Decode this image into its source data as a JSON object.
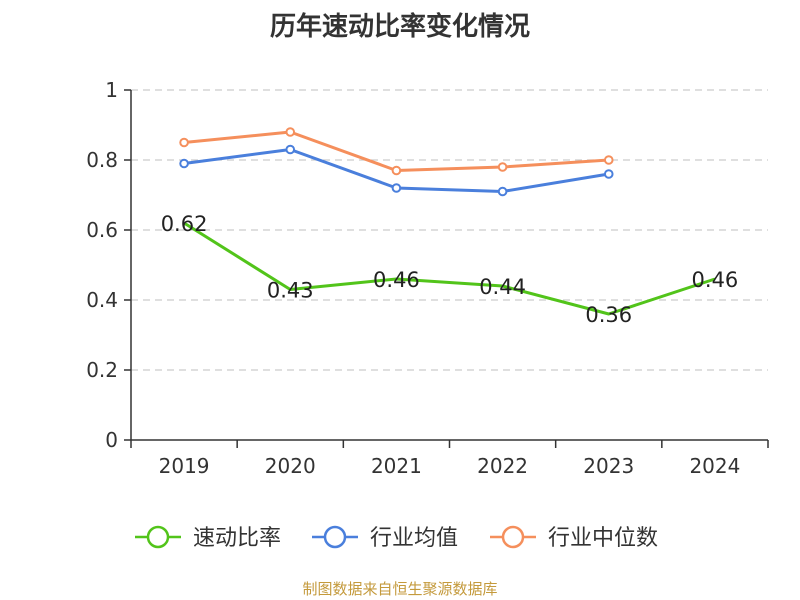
{
  "colors": {
    "series_speed": "#52c41a",
    "series_avg": "#4a7fdc",
    "series_median": "#f58f5c",
    "source": "#c49a3c",
    "grid": "#cccccc",
    "axis": "#333333"
  },
  "source_text": "制图数据来自恒生聚源数据库",
  "chart_data": {
    "type": "line",
    "title": "历年速动比率变化情况",
    "categories": [
      "2019",
      "2020",
      "2021",
      "2022",
      "2023",
      "2024"
    ],
    "ylim": [
      0,
      1
    ],
    "yticks": [
      0,
      0.2,
      0.4,
      0.6,
      0.8,
      1
    ],
    "ytick_labels": [
      "0",
      "0.2",
      "0.4",
      "0.6",
      "0.8",
      "1"
    ],
    "grid": true,
    "legend_position": "bottom",
    "series": [
      {
        "name": "速动比率",
        "values": [
          0.62,
          0.43,
          0.46,
          0.44,
          0.36,
          0.46
        ],
        "labels": [
          "0.62",
          "0.43",
          "0.46",
          "0.44",
          "0.36",
          "0.46"
        ],
        "show_labels": true,
        "show_markers": false
      },
      {
        "name": "行业均值",
        "values": [
          0.79,
          0.83,
          0.72,
          0.71,
          0.76,
          null
        ],
        "show_labels": false,
        "show_markers": true
      },
      {
        "name": "行业中位数",
        "values": [
          0.85,
          0.88,
          0.77,
          0.78,
          0.8,
          null
        ],
        "show_labels": false,
        "show_markers": true
      }
    ]
  }
}
